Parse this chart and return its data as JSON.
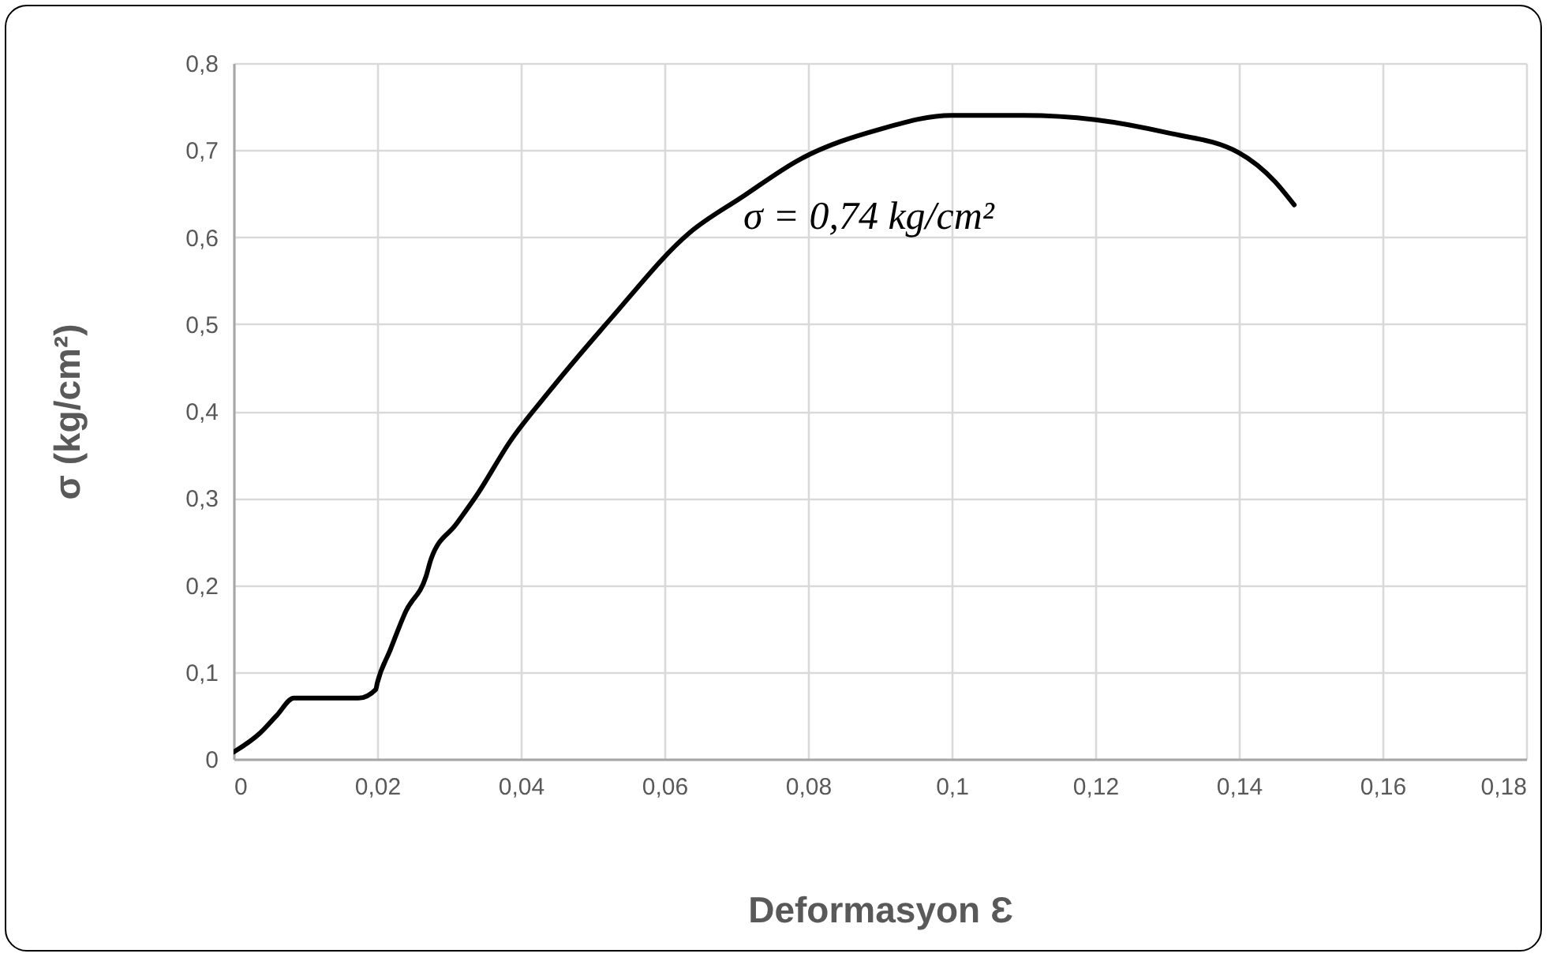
{
  "chart_data": {
    "type": "line",
    "xlabel": "Deformasyon Ɛ",
    "ylabel": "σ (kg/cm²)",
    "annotations": [
      "σ = 0,74 kg/cm²"
    ],
    "xlim": [
      0,
      0.18
    ],
    "ylim": [
      0,
      0.8
    ],
    "xticks": [
      0,
      {
        "value": 0.02,
        "label": "0,02"
      },
      {
        "value": 0.04,
        "label": "0,04"
      },
      {
        "value": 0.06,
        "label": "0,06"
      },
      {
        "value": 0.08,
        "label": "0,08"
      },
      {
        "value": 0.1,
        "label": "0,1"
      },
      {
        "value": 0.12,
        "label": "0,12"
      },
      {
        "value": 0.14,
        "label": "0,14"
      },
      {
        "value": 0.16,
        "label": "0,16"
      },
      {
        "value": 0.18,
        "label": "0,18"
      }
    ],
    "yticks": [
      0,
      {
        "value": 0.1,
        "label": "0,1"
      },
      {
        "value": 0.2,
        "label": "0,2"
      },
      {
        "value": 0.3,
        "label": "0,3"
      },
      {
        "value": 0.4,
        "label": "0,4"
      },
      {
        "value": 0.5,
        "label": "0,5"
      },
      {
        "value": 0.6,
        "label": "0,6"
      },
      {
        "value": 0.7,
        "label": "0,7"
      },
      {
        "value": 0.8,
        "label": "0,8"
      }
    ],
    "grid": true,
    "marker": "none",
    "line_style": "solid",
    "series": [
      {
        "color": "#000000",
        "x": [
          0,
          0.0037,
          0.006,
          0.0084,
          0.0125,
          0.0174,
          0.0198,
          0.02,
          0.0218,
          0.024,
          0.0268,
          0.0275,
          0.031,
          0.034,
          0.0385,
          0.0437,
          0.0525,
          0.0635,
          0.0708,
          0.079,
          0.09,
          0.1,
          0.11,
          0.12,
          0.13,
          0.14,
          0.145,
          0.1477
        ],
        "values": [
          0.008,
          0.03,
          0.05,
          0.07,
          0.07,
          0.07,
          0.08,
          0.087,
          0.125,
          0.17,
          0.21,
          0.23,
          0.27,
          0.305,
          0.365,
          0.42,
          0.506,
          0.605,
          0.646,
          0.69,
          0.724,
          0.74,
          0.74,
          0.735,
          0.72,
          0.697,
          0.664,
          0.637
        ]
      }
    ]
  }
}
